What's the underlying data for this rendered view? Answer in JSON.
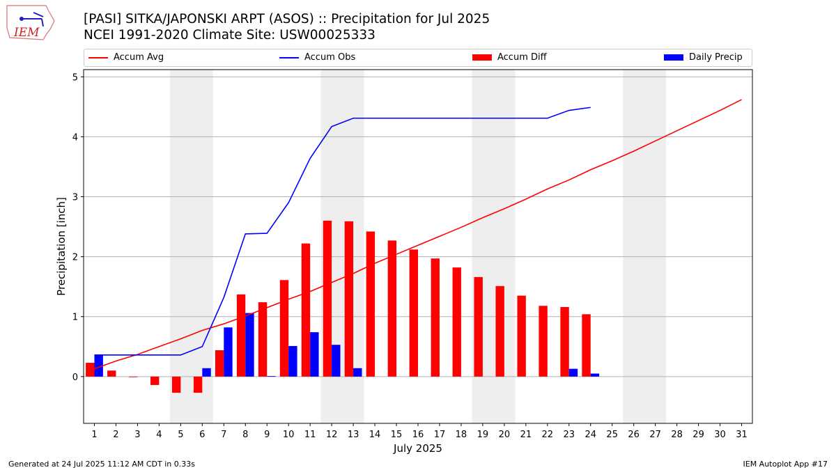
{
  "header": {
    "title": "[PASI] SITKA/JAPONSKI ARPT (ASOS) :: Precipitation for Jul 2025",
    "subtitle": "NCEI 1991-2020 Climate Site: USW00025333",
    "logo_text": "IEM"
  },
  "footer": {
    "left": "Generated at 24 Jul 2025 11:12 AM CDT in 0.33s",
    "right": "IEM Autoplot App #17"
  },
  "colors": {
    "avg": "#ff0000",
    "obs": "#0000ff",
    "diff": "#ff0000",
    "daily": "#0000ff",
    "weekend": "#eeeeee"
  },
  "chart_data": {
    "type": "bar",
    "xlabel": "July 2025",
    "ylabel": "Precipitation [inch]",
    "ylim": [
      -0.78,
      5.12
    ],
    "xlim": [
      0.5,
      31.5
    ],
    "yticks": [
      0,
      1,
      2,
      3,
      4,
      5
    ],
    "xticks": [
      1,
      2,
      3,
      4,
      5,
      6,
      7,
      8,
      9,
      10,
      11,
      12,
      13,
      14,
      15,
      16,
      17,
      18,
      19,
      20,
      21,
      22,
      23,
      24,
      25,
      26,
      27,
      28,
      29,
      30,
      31
    ],
    "weekends": [
      [
        5,
        6
      ],
      [
        12,
        13
      ],
      [
        19,
        20
      ],
      [
        26,
        27
      ]
    ],
    "grid": true,
    "legend": [
      "Accum Avg",
      "Accum Obs",
      "Accum Diff",
      "Daily Precip"
    ],
    "series": [
      {
        "name": "Accum Avg",
        "type": "line",
        "values": [
          0.13,
          0.26,
          0.37,
          0.5,
          0.63,
          0.77,
          0.88,
          1.01,
          1.15,
          1.29,
          1.42,
          1.57,
          1.72,
          1.89,
          2.04,
          2.19,
          2.34,
          2.49,
          2.65,
          2.8,
          2.96,
          3.13,
          3.28,
          3.45,
          3.6,
          3.76,
          3.93,
          4.1,
          4.27,
          4.44,
          4.62
        ]
      },
      {
        "name": "Accum Obs",
        "type": "line",
        "values": [
          0.36,
          0.36,
          0.36,
          0.36,
          0.36,
          0.5,
          1.32,
          2.38,
          2.39,
          2.9,
          3.64,
          4.17,
          4.31,
          4.31,
          4.31,
          4.31,
          4.31,
          4.31,
          4.31,
          4.31,
          4.31,
          4.31,
          4.44,
          4.49
        ]
      },
      {
        "name": "Accum Diff",
        "type": "bar",
        "values": [
          0.23,
          0.1,
          -0.01,
          -0.14,
          -0.27,
          -0.27,
          0.44,
          1.37,
          1.24,
          1.61,
          2.22,
          2.6,
          2.59,
          2.42,
          2.27,
          2.12,
          1.97,
          1.82,
          1.66,
          1.51,
          1.35,
          1.18,
          1.16,
          1.04
        ]
      },
      {
        "name": "Daily Precip",
        "type": "bar",
        "values": [
          0.36,
          0,
          0,
          0,
          0,
          0.14,
          0.82,
          1.06,
          0.01,
          0.51,
          0.74,
          0.53,
          0.14,
          0,
          0,
          0,
          0,
          0,
          0,
          0,
          0,
          0,
          0.13,
          0.05
        ]
      }
    ]
  }
}
